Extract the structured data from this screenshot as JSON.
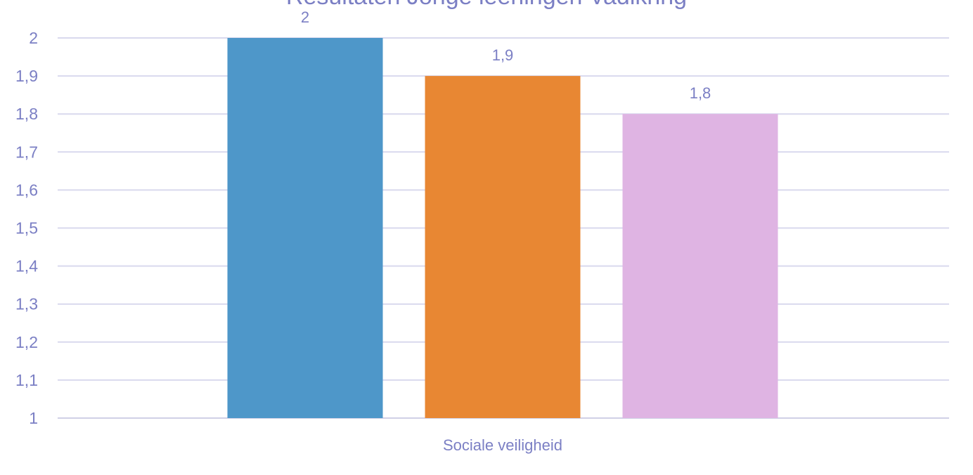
{
  "chart_data": {
    "type": "bar",
    "title": "Resultaten Jonge leerlingen Vadikring",
    "categories": [
      "Sociale veiligheid"
    ],
    "series": [
      {
        "values": [
          2
        ],
        "color": "#4e97c9",
        "label": "2"
      },
      {
        "values": [
          1.9
        ],
        "color": "#e88733",
        "label": "1,9"
      },
      {
        "values": [
          1.8
        ],
        "color": "#dfb4e3",
        "label": "1,8"
      }
    ],
    "ylim": [
      1,
      2
    ],
    "yticks": [
      "1",
      "1,1",
      "1,2",
      "1,3",
      "1,4",
      "1,5",
      "1,6",
      "1,7",
      "1,8",
      "1,9",
      "2"
    ],
    "grid": true,
    "legend": "none"
  }
}
